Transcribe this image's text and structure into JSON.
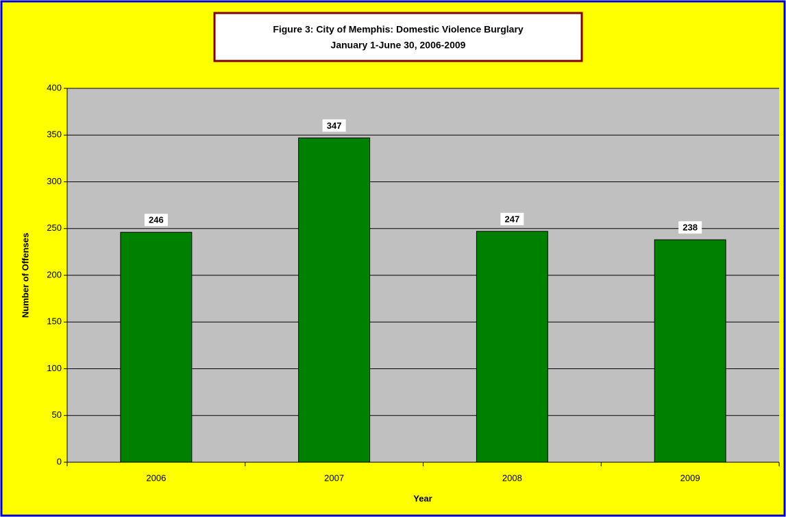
{
  "chart_data": {
    "type": "bar",
    "title": "Figure 3: City of Memphis: Domestic Violence Burglary",
    "subtitle": "January 1-June 30, 2006-2009",
    "x_label": "Year",
    "y_label": "Number of Offenses",
    "categories": [
      "2006",
      "2007",
      "2008",
      "2009"
    ],
    "values": [
      246,
      347,
      247,
      238
    ],
    "color": "#008000",
    "ylim": [
      0,
      400
    ],
    "yticks": [
      0,
      50,
      100,
      150,
      200,
      250,
      300,
      350,
      400
    ],
    "grid": true
  }
}
